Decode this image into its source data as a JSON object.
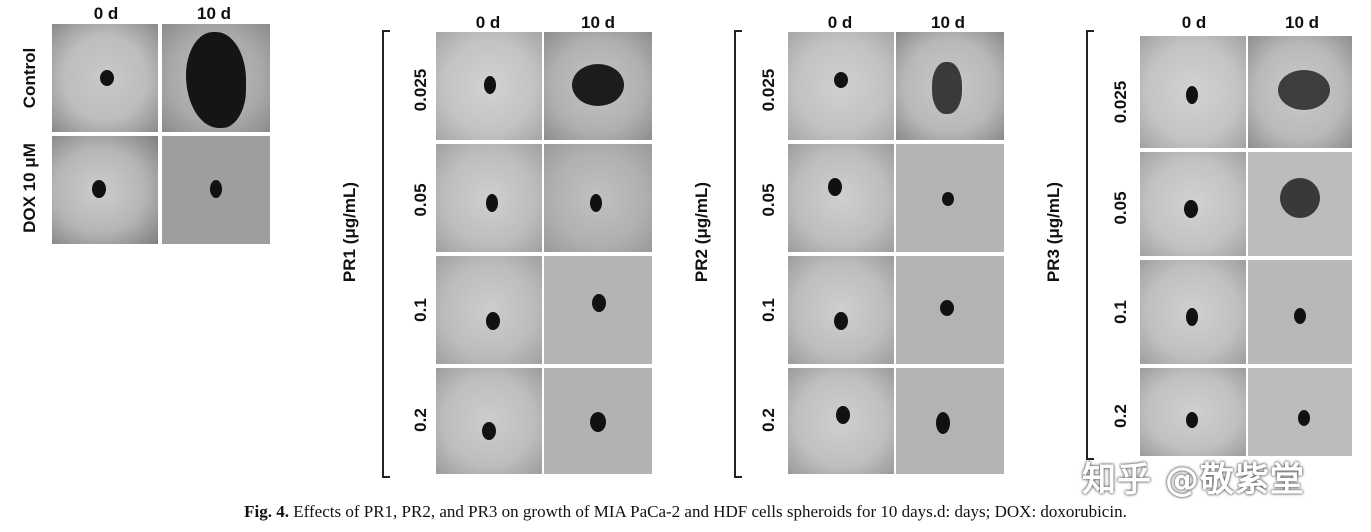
{
  "figure": {
    "caption_label": "Fig. 4.",
    "caption_text": "Effects of PR1, PR2, and PR3 on growth of MIA PaCa-2 and HDF cells spheroids for 10 days.d: days; DOX: doxorubicin.",
    "watermark": "知乎 @敬紫堂",
    "control_panel": {
      "col_headers": [
        "0 d",
        "10 d"
      ],
      "row_labels": [
        "Control",
        "DOX 10 μM"
      ]
    },
    "groups": [
      {
        "label": "PR1  (μg/mL)",
        "col_headers": [
          "0 d",
          "10 d"
        ],
        "row_labels": [
          "0.025",
          "0.05",
          "0.1",
          "0.2"
        ]
      },
      {
        "label": "PR2  (μg/mL)",
        "col_headers": [
          "0 d",
          "10 d"
        ],
        "row_labels": [
          "0.025",
          "0.05",
          "0.1",
          "0.2"
        ]
      },
      {
        "label": "PR3  (μg/mL)",
        "col_headers": [
          "0 d",
          "10 d"
        ],
        "row_labels": [
          "0.025",
          "0.05",
          "0.1",
          "0.2"
        ]
      }
    ]
  }
}
